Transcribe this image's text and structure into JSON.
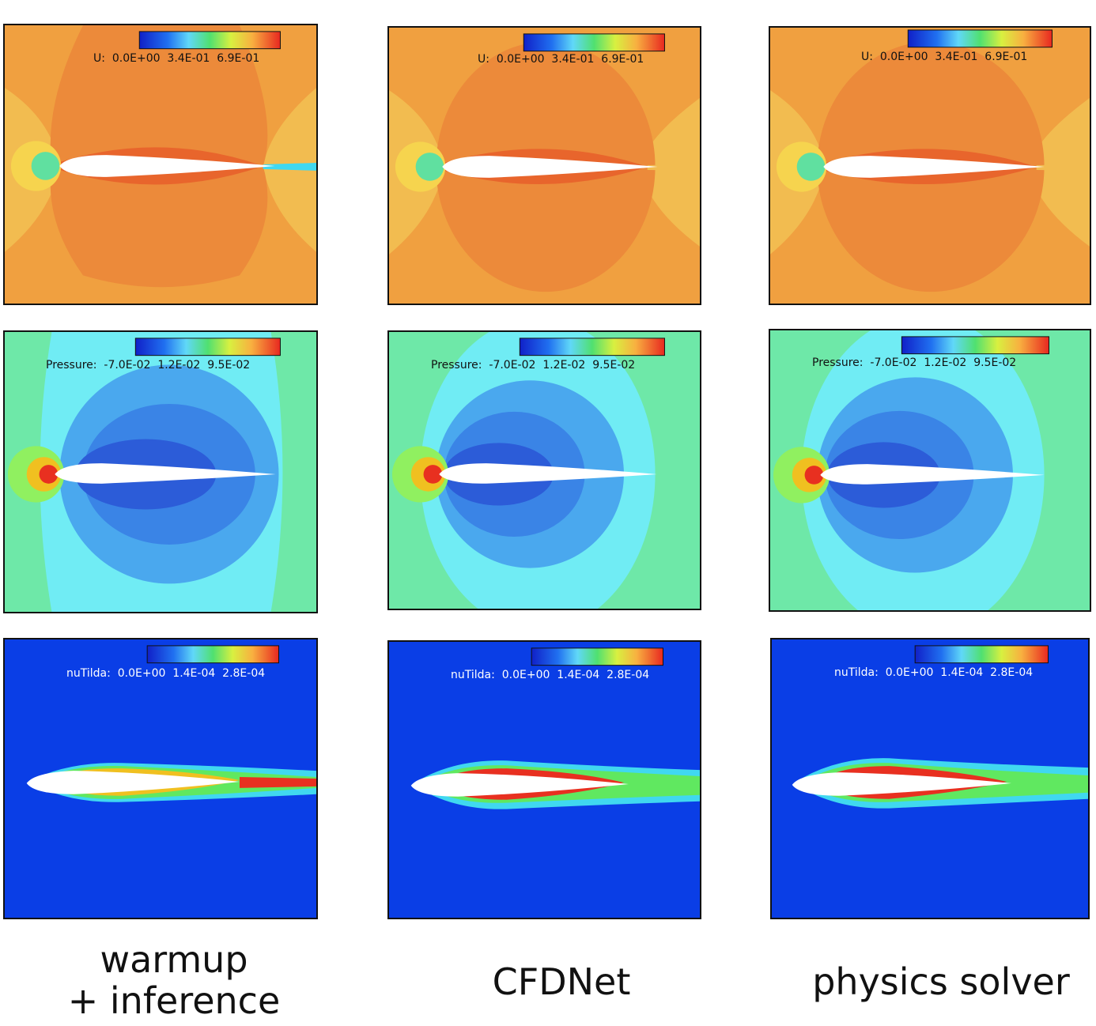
{
  "columns": [
    {
      "caption_lines": [
        "warmup",
        "+ inference"
      ]
    },
    {
      "caption_lines": [
        "CFDNet"
      ]
    },
    {
      "caption_lines": [
        "physics solver"
      ]
    }
  ],
  "rows": [
    {
      "field": "U",
      "legend": "U:  0.0E+00  3.4E-01  6.9E-01"
    },
    {
      "field": "Pressure",
      "legend": "Pressure:  -7.0E-02  1.2E-02  9.5E-02"
    },
    {
      "field": "nuTilda",
      "legend": "nuTilda:  0.0E+00  1.4E-04  2.8E-04"
    }
  ],
  "colors": {
    "u_bg": "#f0a040",
    "u_inner": "#ec8a3a",
    "u_side": "#f2bc50",
    "p_bg": "#6ee8a8",
    "p_mid": "#70ecf4",
    "p_low": "#4aa8ee",
    "p_lowest": "#2c5cd8",
    "nu_bg": "#0a3ee6",
    "hot": "#e83020",
    "warm": "#f0c020",
    "green": "#60e860",
    "cyan": "#40d8f0"
  }
}
